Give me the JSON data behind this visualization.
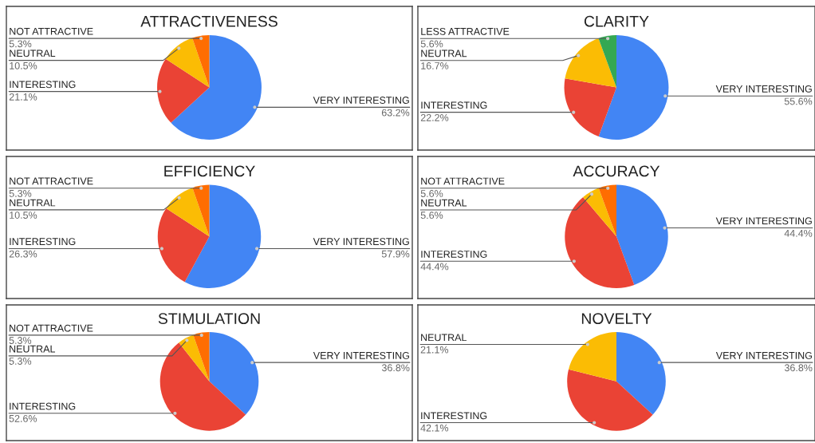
{
  "chart_data": [
    {
      "type": "pie",
      "title": "ATTRACTIVENESS",
      "categories": [
        "VERY INTERESTING",
        "INTERESTING",
        "NEUTRAL",
        "NOT ATTRACTIVE"
      ],
      "values": [
        63.2,
        21.1,
        10.5,
        5.3
      ],
      "value_labels": [
        "63.2%",
        "21.1%",
        "10.5%",
        "5.3%"
      ],
      "colors": [
        "#4285f4",
        "#ea4335",
        "#fbbc04",
        "#ff6d01"
      ]
    },
    {
      "type": "pie",
      "title": "CLARITY",
      "categories": [
        "VERY INTERESTING",
        "INTERESTING",
        "NEUTRAL",
        "LESS ATTRACTIVE"
      ],
      "values": [
        55.6,
        22.2,
        16.7,
        5.6
      ],
      "value_labels": [
        "55.6%",
        "22.2%",
        "16.7%",
        "5.6%"
      ],
      "colors": [
        "#4285f4",
        "#ea4335",
        "#fbbc04",
        "#34a853"
      ]
    },
    {
      "type": "pie",
      "title": "EFFICIENCY",
      "categories": [
        "VERY INTERESTING",
        "INTERESTING",
        "NEUTRAL",
        "NOT ATTRACTIVE"
      ],
      "values": [
        57.9,
        26.3,
        10.5,
        5.3
      ],
      "value_labels": [
        "57.9%",
        "26.3%",
        "10.5%",
        "5.3%"
      ],
      "colors": [
        "#4285f4",
        "#ea4335",
        "#fbbc04",
        "#ff6d01"
      ]
    },
    {
      "type": "pie",
      "title": "ACCURACY",
      "categories": [
        "VERY INTERESTING",
        "INTERESTING",
        "NEUTRAL",
        "NOT ATTRACTIVE"
      ],
      "values": [
        44.4,
        44.4,
        5.6,
        5.6
      ],
      "value_labels": [
        "44.4%",
        "44.4%",
        "5.6%",
        "5.6%"
      ],
      "colors": [
        "#4285f4",
        "#ea4335",
        "#fbbc04",
        "#ff6d01"
      ]
    },
    {
      "type": "pie",
      "title": "STIMULATION",
      "categories": [
        "VERY INTERESTING",
        "INTERESTING",
        "NEUTRAL",
        "NOT ATTRACTIVE"
      ],
      "values": [
        36.8,
        52.6,
        5.3,
        5.3
      ],
      "value_labels": [
        "36.8%",
        "52.6%",
        "5.3%",
        "5.3%"
      ],
      "colors": [
        "#4285f4",
        "#ea4335",
        "#fbbc04",
        "#ff6d01"
      ]
    },
    {
      "type": "pie",
      "title": "NOVELTY",
      "categories": [
        "VERY INTERESTING",
        "INTERESTING",
        "NEUTRAL"
      ],
      "values": [
        36.8,
        42.1,
        21.1
      ],
      "value_labels": [
        "36.8%",
        "42.1%",
        "21.1%"
      ],
      "colors": [
        "#4285f4",
        "#ea4335",
        "#fbbc04"
      ]
    }
  ]
}
